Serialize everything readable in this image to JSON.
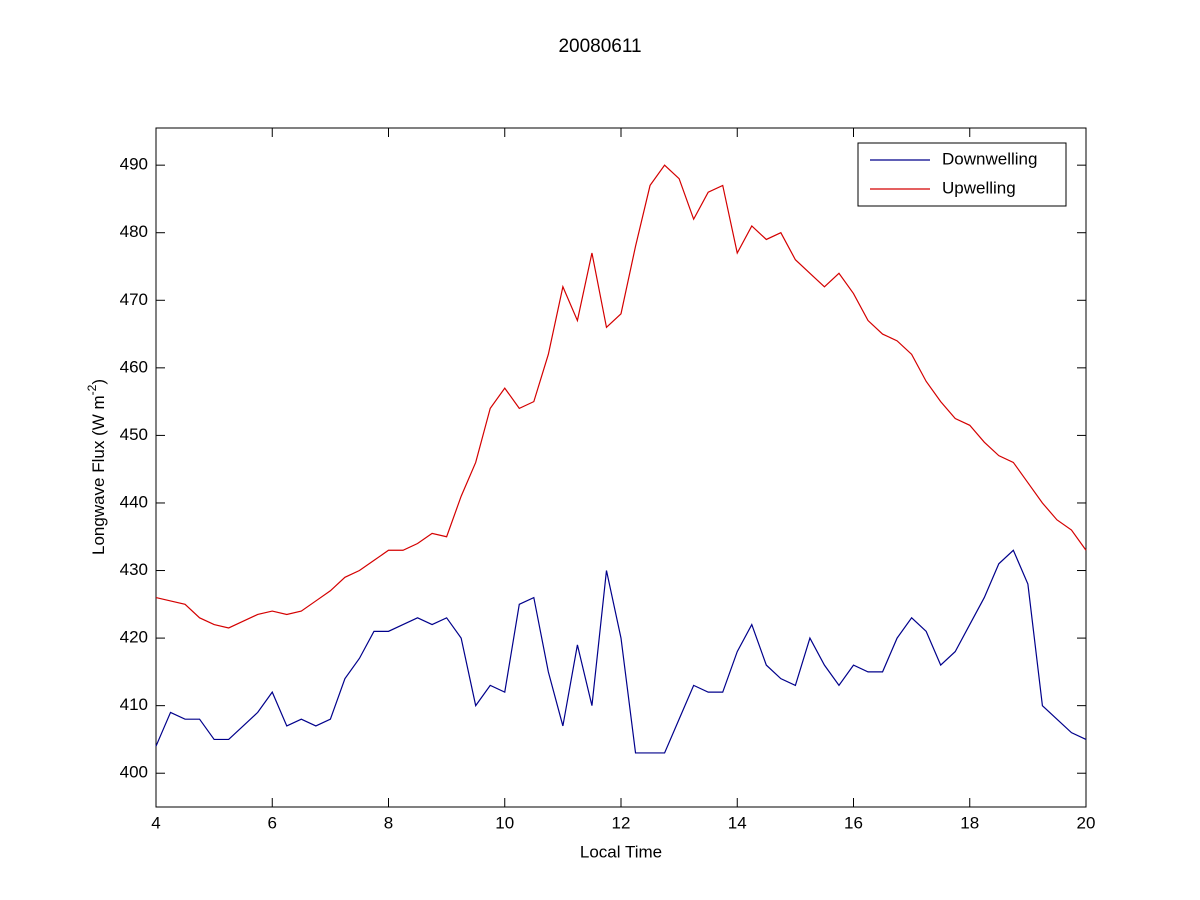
{
  "chart_data": {
    "type": "line",
    "title": "20080611",
    "xlabel": "Local Time",
    "ylabel_parts": [
      "Longwave Flux (W m",
      "-2",
      ")"
    ],
    "x": [
      4,
      4.25,
      4.5,
      4.75,
      5,
      5.25,
      5.5,
      5.75,
      6,
      6.25,
      6.5,
      6.75,
      7,
      7.25,
      7.5,
      7.75,
      8,
      8.25,
      8.5,
      8.75,
      9,
      9.25,
      9.5,
      9.75,
      10,
      10.25,
      10.5,
      10.75,
      11,
      11.25,
      11.5,
      11.75,
      12,
      12.25,
      12.5,
      12.75,
      13,
      13.25,
      13.5,
      13.75,
      14,
      14.25,
      14.5,
      14.75,
      15,
      15.25,
      15.5,
      15.75,
      16,
      16.25,
      16.5,
      16.75,
      17,
      17.25,
      17.5,
      17.75,
      18,
      18.25,
      18.5,
      18.75,
      19,
      19.25,
      19.5,
      19.75,
      20
    ],
    "series": [
      {
        "name": "Downwelling",
        "color": "#00008b",
        "values": [
          404,
          409,
          408,
          408,
          405,
          405,
          407,
          409,
          412,
          407,
          408,
          407,
          408,
          414,
          417,
          421,
          421,
          422,
          423,
          422,
          423,
          420,
          410,
          413,
          412,
          425,
          426,
          415,
          407,
          419,
          410,
          430,
          420,
          403,
          403,
          403,
          408,
          413,
          412,
          412,
          418,
          422,
          416,
          414,
          413,
          420,
          416,
          413,
          416,
          415,
          415,
          420,
          423,
          421,
          416,
          418,
          422,
          426,
          431,
          433,
          428,
          410,
          408,
          406,
          405
        ]
      },
      {
        "name": "Upwelling",
        "color": "#d40000",
        "values": [
          426,
          425.5,
          425,
          423,
          422,
          421.5,
          422.5,
          423.5,
          424,
          423.5,
          424,
          425.5,
          427,
          429,
          430,
          431.5,
          433,
          433,
          434,
          435.5,
          435,
          441,
          446,
          454,
          457,
          454,
          455,
          462,
          472,
          467,
          477,
          466,
          468,
          478,
          487,
          490,
          488,
          482,
          486,
          487,
          477,
          481,
          479,
          480,
          476,
          474,
          472,
          474,
          471,
          467,
          465,
          464,
          462,
          458,
          455,
          452.5,
          451.5,
          449,
          447,
          446,
          443,
          440,
          437.5,
          436,
          433
        ]
      }
    ],
    "xlim": [
      4,
      20
    ],
    "xticks": [
      4,
      6,
      8,
      10,
      12,
      14,
      16,
      18,
      20
    ],
    "ylim": [
      395,
      495.5
    ],
    "yticks": [
      400,
      410,
      420,
      430,
      440,
      450,
      460,
      470,
      480,
      490
    ],
    "grid": false,
    "legend": "upper-right"
  }
}
